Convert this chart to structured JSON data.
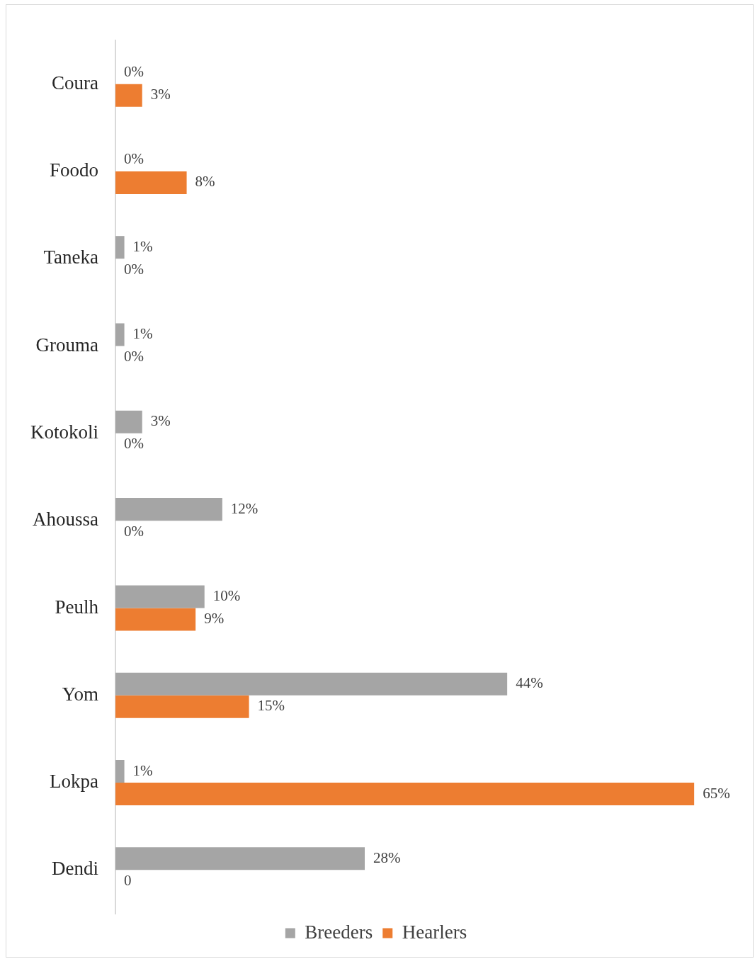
{
  "chart_data": {
    "type": "bar",
    "orientation": "horizontal",
    "categories": [
      "Coura",
      "Foodo",
      "Taneka",
      "Grouma",
      "Kotokoli",
      "Ahoussa",
      "Peulh",
      "Yom",
      "Lokpa",
      "Dendi"
    ],
    "series": [
      {
        "name": "Breeders",
        "color": "#a5a5a5",
        "values": [
          0,
          0,
          1,
          1,
          3,
          12,
          10,
          44,
          1,
          28
        ],
        "value_labels": [
          "0%",
          "0%",
          "1%",
          "1%",
          "3%",
          "12%",
          "10%",
          "44%",
          "1%",
          "28%"
        ]
      },
      {
        "name": "Hearlers",
        "color": "#ed7d31",
        "values": [
          3,
          8,
          0,
          0,
          0,
          0,
          9,
          15,
          65,
          0
        ],
        "value_labels": [
          "3%",
          "8%",
          "0%",
          "0%",
          "0%",
          "0%",
          "9%",
          "15%",
          "65%",
          "0"
        ]
      }
    ],
    "grid": false,
    "legend": "bottom"
  }
}
